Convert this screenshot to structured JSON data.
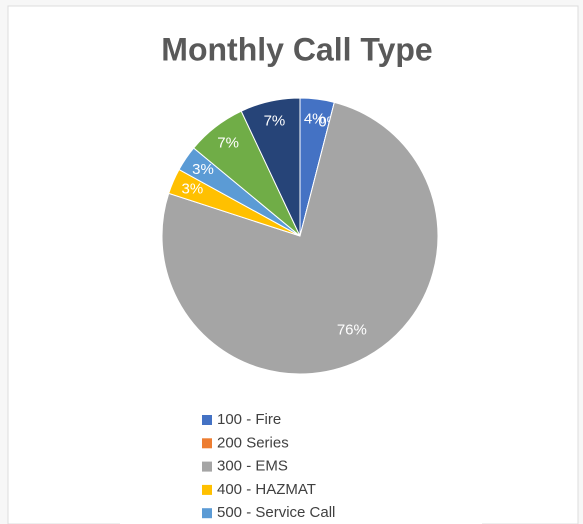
{
  "chart_data": {
    "type": "pie",
    "title": "Monthly Call Type",
    "categories": [
      "100 - Fire",
      "200 Series",
      "300 - EMS",
      "400 - HAZMAT",
      "500 - Service Call",
      null,
      null
    ],
    "values": [
      4,
      0,
      76,
      3,
      3,
      7,
      7
    ],
    "value_labels": [
      "4%",
      "0%",
      "76%",
      "3%",
      "3%",
      "7%",
      "7%"
    ],
    "colors": [
      "#4472c4",
      "#ed7d31",
      "#a5a5a5",
      "#ffc000",
      "#5b9bd5",
      "#70ad47",
      "#264478"
    ]
  }
}
